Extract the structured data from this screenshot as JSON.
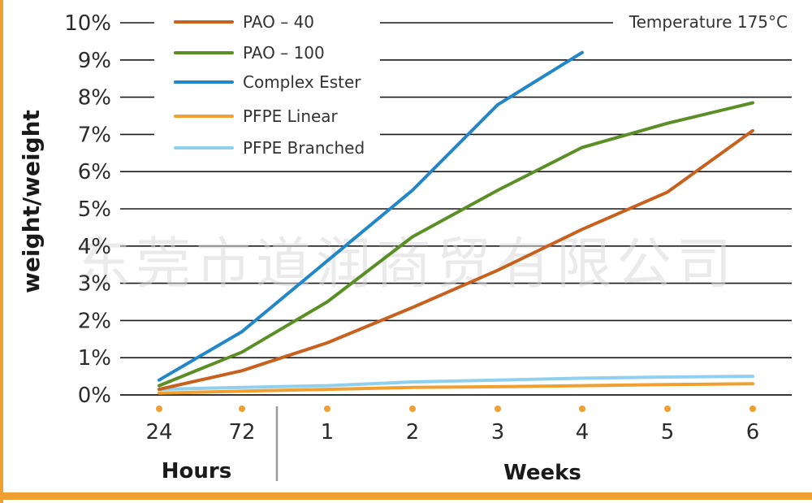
{
  "chart_data": {
    "type": "line",
    "ylabel": "weight/weight",
    "annotation": "Temperature 175°C",
    "watermark": "东莞市道润商贸有限公司",
    "ylim": [
      0,
      10
    ],
    "y_ticks": [
      "0%",
      "1%",
      "2%",
      "3%",
      "4%",
      "5%",
      "6%",
      "7%",
      "8%",
      "9%",
      "10%"
    ],
    "categories": [
      "24",
      "72",
      "1",
      "2",
      "3",
      "4",
      "5",
      "6"
    ],
    "group_labels": [
      "Hours",
      "Weeks"
    ],
    "grid": true,
    "legend_position": "top-left",
    "marker_color": "#f0a030",
    "frame_color": "#f0a030",
    "series": [
      {
        "name": "PAO – 40",
        "color": "#c8601e",
        "values": [
          0.15,
          0.65,
          1.4,
          2.35,
          3.35,
          4.45,
          5.45,
          7.1
        ]
      },
      {
        "name": "PAO – 100",
        "color": "#5b8f26",
        "values": [
          0.25,
          1.15,
          2.5,
          4.25,
          5.5,
          6.65,
          7.3,
          7.85
        ]
      },
      {
        "name": "Complex Ester",
        "color": "#2187c8",
        "values": [
          0.4,
          1.7,
          3.6,
          5.5,
          7.8,
          9.2,
          null,
          null
        ]
      },
      {
        "name": "PFPE Linear",
        "color": "#f0a030",
        "values": [
          0.05,
          0.1,
          0.15,
          0.2,
          0.22,
          0.25,
          0.28,
          0.3
        ]
      },
      {
        "name": "PFPE Branched",
        "color": "#8fd0ee",
        "values": [
          0.15,
          0.2,
          0.25,
          0.35,
          0.4,
          0.45,
          0.48,
          0.5
        ]
      }
    ]
  }
}
